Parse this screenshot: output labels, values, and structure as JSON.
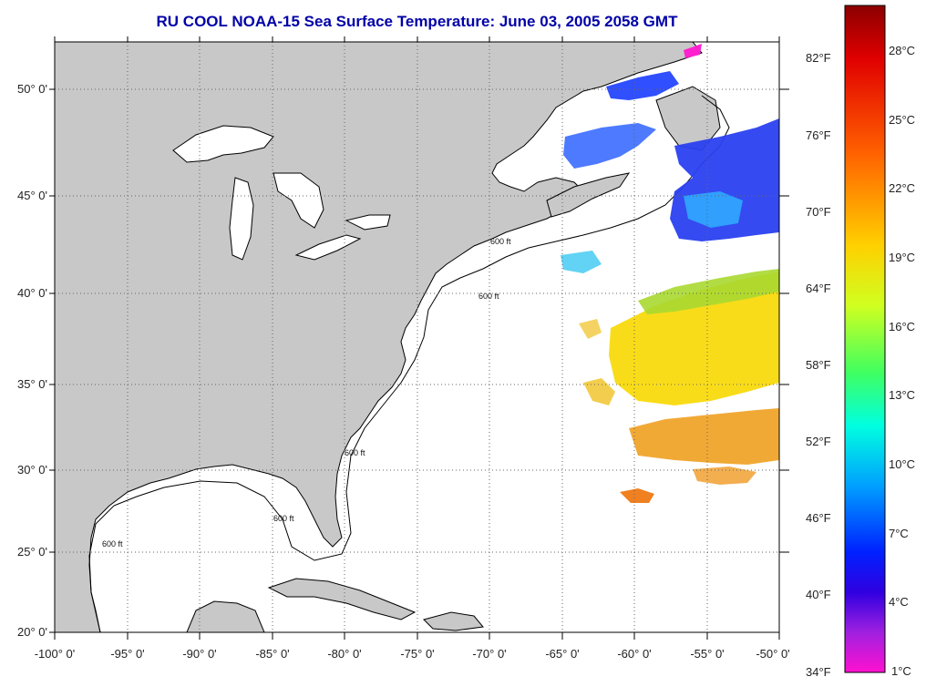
{
  "title": "RU COOL  NOAA-15  Sea Surface Temperature:  June 03, 2005 2058 GMT",
  "latitude_ticks": [
    "50° 0'",
    "45° 0'",
    "40° 0'",
    "35° 0'",
    "30° 0'",
    "25° 0'",
    "20° 0'"
  ],
  "longitude_ticks": [
    "-100° 0'",
    "-95° 0'",
    "-90° 0'",
    "-85° 0'",
    "-80° 0'",
    "-75° 0'",
    "-70° 0'",
    "-65° 0'",
    "-60° 0'",
    "-55° 0'",
    "-50° 0'"
  ],
  "colorbar": {
    "fahrenheit_labels": [
      "82°F",
      "76°F",
      "70°F",
      "64°F",
      "58°F",
      "52°F",
      "46°F",
      "40°F",
      "34°F"
    ],
    "celsius_labels": [
      "28°C",
      "25°C",
      "22°C",
      "19°C",
      "16°C",
      "13°C",
      "10°C",
      "7°C",
      "4°C",
      "1°C"
    ],
    "colors": [
      "#8b0000",
      "#ff0000",
      "#ff8c00",
      "#ffd700",
      "#ffff00",
      "#9acd32",
      "#00ff7f",
      "#00ffff",
      "#00bfff",
      "#0064ff",
      "#0000ff",
      "#8a2be2",
      "#ff00ff"
    ]
  },
  "contour_label": "600 ft",
  "colors": {
    "land": "#c8c8c8",
    "ocean": "#ffffff",
    "coast": "#000000",
    "grid": "#666666",
    "title": "#0000a8"
  }
}
